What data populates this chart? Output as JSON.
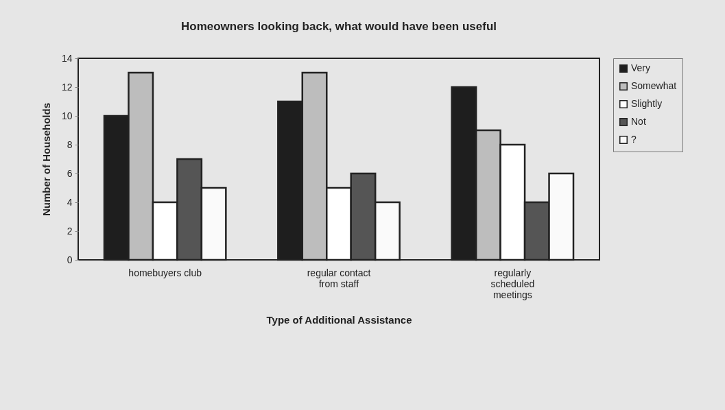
{
  "chart_data": {
    "type": "bar",
    "title": "Homeowners looking back, what would have been useful",
    "xlabel": "Type of Additional Assistance",
    "ylabel": "Number of Households",
    "categories": [
      "homebuyers club",
      "regular contact from staff",
      "regularly scheduled meetings"
    ],
    "series": [
      {
        "name": "Very",
        "color": "#1e1e1e",
        "values": [
          10,
          11,
          12
        ]
      },
      {
        "name": "Somewhat",
        "color": "#bdbdbd",
        "values": [
          13,
          13,
          9
        ]
      },
      {
        "name": "Slightly",
        "color": "#ffffff",
        "values": [
          4,
          5,
          8
        ]
      },
      {
        "name": "Not",
        "color": "#555555",
        "values": [
          7,
          6,
          4
        ]
      },
      {
        "name": "?",
        "color": "#fafafa",
        "values": [
          5,
          4,
          6
        ]
      }
    ],
    "ylim": [
      0,
      14
    ],
    "yticks": [
      0,
      2,
      4,
      6,
      8,
      10,
      12,
      14
    ],
    "grid": false,
    "legend": "right"
  }
}
